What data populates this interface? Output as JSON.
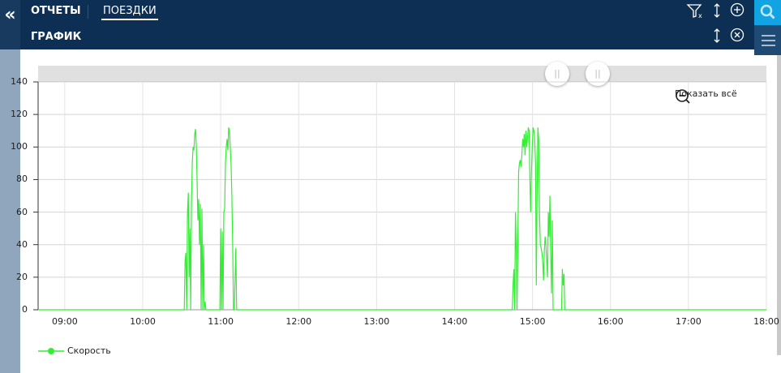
{
  "header": {
    "tab_reports": "ОТЧЕТЫ",
    "tab_trips": "ПОЕЗДКИ",
    "subtitle": "ГРАФИК"
  },
  "icons": {
    "back": "double-chevron-left-icon",
    "filter_clear": "filter-clear-icon",
    "sort": "sort-arrows-icon",
    "add": "plus-circle-icon",
    "close": "close-circle-icon",
    "search": "search-icon",
    "menu": "hamburger-menu-icon",
    "zoom_out": "zoom-out-icon"
  },
  "colors": {
    "header": "#0e2f54",
    "accent": "#12a3e3",
    "series": "#33ee33"
  },
  "chart_controls": {
    "show_all": "Показать всё"
  },
  "chart_data": {
    "type": "line",
    "xlim": [
      "08:39:30",
      "18:00:00"
    ],
    "ylim": [
      0,
      140
    ],
    "grid": true,
    "legend_placement": "bottom-left",
    "x_ticks": [
      "09:00",
      "10:00",
      "11:00",
      "12:00",
      "13:00",
      "14:00",
      "15:00",
      "16:00",
      "17:00",
      "18:00"
    ],
    "y_ticks": [
      "0",
      "20",
      "40",
      "60",
      "80",
      "100",
      "120",
      "140"
    ],
    "series": [
      {
        "name": "Скорость",
        "color": "#33ee33",
        "points": [
          [
            "08:39:30",
            0
          ],
          [
            "10:32:00",
            0
          ],
          [
            "10:32:37",
            30
          ],
          [
            "10:33:14",
            35
          ],
          [
            "10:33:51",
            0
          ],
          [
            "10:34:28",
            60
          ],
          [
            "10:35:05",
            72
          ],
          [
            "10:35:42",
            20
          ],
          [
            "10:36:19",
            50
          ],
          [
            "10:36:56",
            0
          ],
          [
            "10:37:33",
            66
          ],
          [
            "10:38:10",
            90
          ],
          [
            "10:38:47",
            100
          ],
          [
            "10:39:24",
            98
          ],
          [
            "10:40:01",
            108
          ],
          [
            "10:40:38",
            111
          ],
          [
            "10:41:15",
            100
          ],
          [
            "10:41:52",
            80
          ],
          [
            "10:42:29",
            55
          ],
          [
            "10:43:06",
            68
          ],
          [
            "10:43:43",
            40
          ],
          [
            "10:44:20",
            65
          ],
          [
            "10:44:57",
            0
          ],
          [
            "10:45:34",
            62
          ],
          [
            "10:46:11",
            0
          ],
          [
            "10:46:48",
            40
          ],
          [
            "10:47:25",
            0
          ],
          [
            "10:48:02",
            5
          ],
          [
            "10:48:39",
            0
          ],
          [
            "10:59:22",
            0
          ],
          [
            "10:59:59",
            50
          ],
          [
            "11:00:36",
            0
          ],
          [
            "11:01:13",
            48
          ],
          [
            "11:01:50",
            0
          ],
          [
            "11:02:27",
            60
          ],
          [
            "11:03:04",
            62
          ],
          [
            "11:03:41",
            90
          ],
          [
            "11:04:18",
            100
          ],
          [
            "11:04:55",
            105
          ],
          [
            "11:05:32",
            98
          ],
          [
            "11:06:09",
            112
          ],
          [
            "11:06:46",
            110
          ],
          [
            "11:07:23",
            100
          ],
          [
            "11:08:00",
            90
          ],
          [
            "11:08:37",
            70
          ],
          [
            "11:09:14",
            40
          ],
          [
            "11:09:51",
            0
          ],
          [
            "11:10:28",
            0
          ],
          [
            "11:11:05",
            20
          ],
          [
            "11:11:42",
            38
          ],
          [
            "11:12:19",
            0
          ],
          [
            "14:44:24",
            0
          ],
          [
            "14:45:01",
            15
          ],
          [
            "14:45:38",
            25
          ],
          [
            "14:46:15",
            0
          ],
          [
            "14:46:52",
            60
          ],
          [
            "14:47:29",
            35
          ],
          [
            "14:48:06",
            0
          ],
          [
            "14:48:43",
            40
          ],
          [
            "14:49:20",
            85
          ],
          [
            "14:49:57",
            90
          ],
          [
            "14:50:34",
            92
          ],
          [
            "14:51:11",
            88
          ],
          [
            "14:51:48",
            95
          ],
          [
            "14:52:25",
            105
          ],
          [
            "14:53:02",
            100
          ],
          [
            "14:53:39",
            108
          ],
          [
            "14:54:16",
            95
          ],
          [
            "14:54:53",
            110
          ],
          [
            "14:55:30",
            100
          ],
          [
            "14:56:07",
            105
          ],
          [
            "14:56:44",
            112
          ],
          [
            "14:57:21",
            110
          ],
          [
            "14:57:58",
            80
          ],
          [
            "14:58:35",
            60
          ],
          [
            "14:59:12",
            85
          ],
          [
            "14:59:49",
            100
          ],
          [
            "15:00:26",
            112
          ],
          [
            "15:01:03",
            110
          ],
          [
            "15:01:40",
            105
          ],
          [
            "15:02:17",
            90
          ],
          [
            "15:02:54",
            15
          ],
          [
            "15:03:31",
            70
          ],
          [
            "15:04:08",
            112
          ],
          [
            "15:04:45",
            105
          ],
          [
            "15:05:22",
            60
          ],
          [
            "15:05:59",
            40
          ],
          [
            "15:06:36",
            38
          ],
          [
            "15:07:13",
            35
          ],
          [
            "15:07:50",
            30
          ],
          [
            "15:08:27",
            18
          ],
          [
            "15:09:04",
            35
          ],
          [
            "15:09:41",
            45
          ],
          [
            "15:10:18",
            40
          ],
          [
            "15:10:55",
            30
          ],
          [
            "15:11:32",
            20
          ],
          [
            "15:12:09",
            60
          ],
          [
            "15:12:46",
            45
          ],
          [
            "15:13:23",
            70
          ],
          [
            "15:14:00",
            35
          ],
          [
            "15:14:37",
            10
          ],
          [
            "15:15:14",
            55
          ],
          [
            "15:15:51",
            0
          ],
          [
            "15:22:20",
            0
          ],
          [
            "15:22:57",
            25
          ],
          [
            "15:23:34",
            15
          ],
          [
            "15:24:11",
            22
          ],
          [
            "15:24:48",
            0
          ],
          [
            "18:00:00",
            0
          ]
        ]
      }
    ]
  }
}
